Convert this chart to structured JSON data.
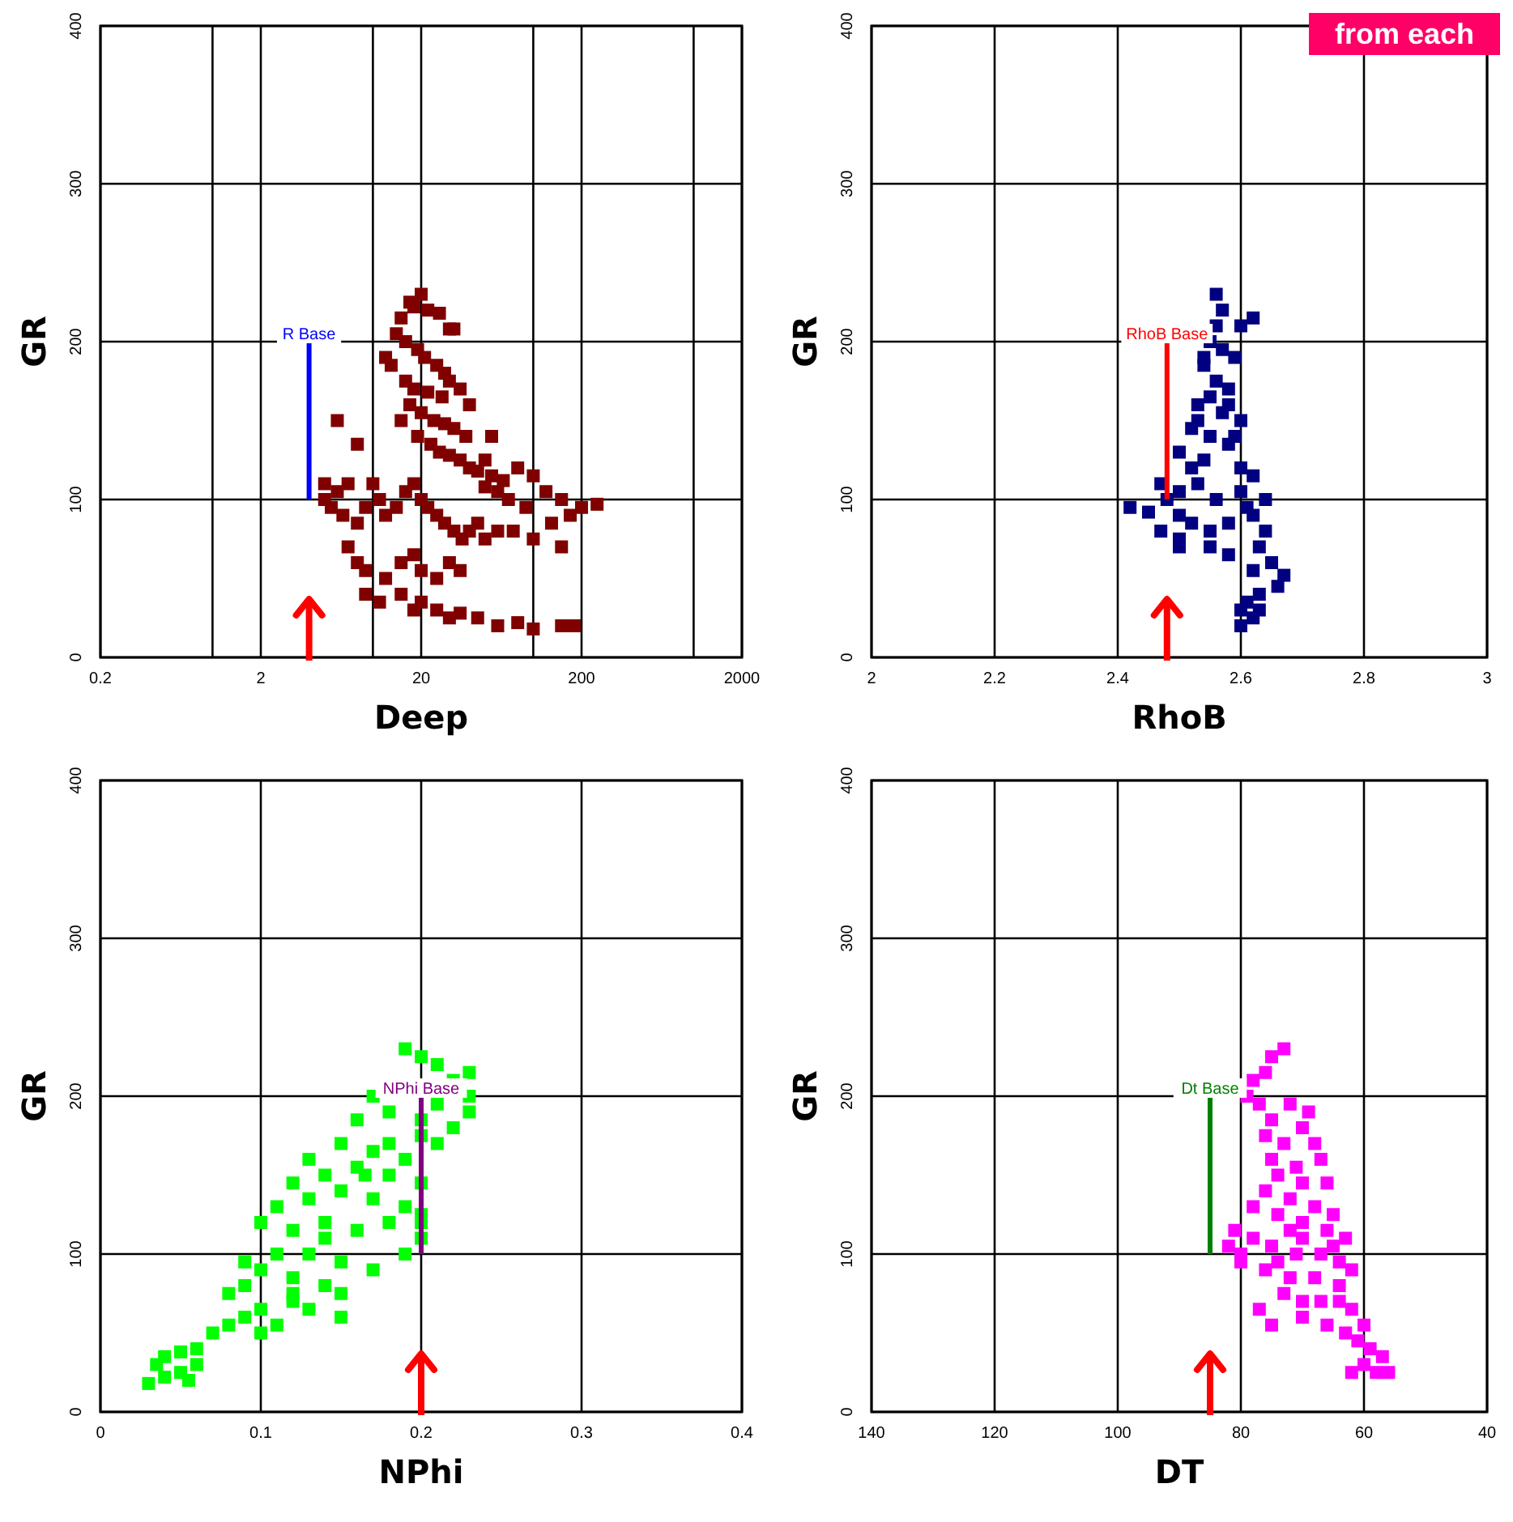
{
  "chart_data": [
    {
      "type": "scatter",
      "xlabel": "Deep",
      "ylabel": "GR",
      "log": "x",
      "xlim": [
        0.2,
        2000
      ],
      "xticks": [
        0.2,
        {
          "value": 1,
          "label": null
        },
        2,
        {
          "value": 10,
          "label": null
        },
        20,
        {
          "value": 100,
          "label": null
        },
        200,
        {
          "value": 1000,
          "label": null
        },
        2000
      ],
      "ylim": [
        0,
        400
      ],
      "yticks": [
        0,
        100,
        200,
        300,
        400
      ],
      "grid": true,
      "marker": "square",
      "series": [
        {
          "color": "#800000",
          "x": [
            15,
            17,
            20,
            18,
            22,
            26,
            30,
            32,
            14,
            16,
            12,
            13,
            19,
            21,
            25,
            28,
            30,
            35,
            16,
            18,
            22,
            27,
            17,
            20,
            24,
            28,
            32,
            38,
            15,
            19,
            23,
            26,
            30,
            35,
            40,
            45,
            55,
            65,
            80,
            100,
            120,
            150,
            200,
            250,
            170,
            130,
            90,
            70,
            60,
            50,
            8,
            7,
            6,
            5,
            5.5,
            6.5,
            8,
            9,
            10,
            11,
            12,
            14,
            16,
            18,
            20,
            22,
            25,
            28,
            32,
            36,
            40,
            45,
            50,
            60,
            75,
            100,
            150,
            7,
            8,
            9,
            12,
            15,
            18,
            20,
            25,
            30,
            35,
            9,
            11,
            15,
            18,
            20,
            25,
            30,
            35,
            45,
            60,
            80,
            100,
            150,
            180,
            6,
            40,
            50,
            55,
            5
          ],
          "values": [
            215,
            225,
            230,
            222,
            220,
            218,
            208,
            208,
            205,
            200,
            190,
            185,
            195,
            190,
            185,
            180,
            175,
            170,
            175,
            170,
            168,
            165,
            160,
            155,
            150,
            148,
            145,
            140,
            150,
            140,
            135,
            130,
            128,
            125,
            120,
            118,
            115,
            112,
            120,
            115,
            105,
            100,
            95,
            97,
            90,
            85,
            95,
            100,
            105,
            108,
            135,
            110,
            105,
            100,
            95,
            90,
            85,
            95,
            110,
            100,
            90,
            95,
            105,
            110,
            100,
            95,
            90,
            85,
            80,
            75,
            80,
            85,
            75,
            80,
            80,
            75,
            70,
            70,
            60,
            55,
            50,
            60,
            65,
            55,
            50,
            60,
            55,
            40,
            35,
            40,
            30,
            35,
            30,
            25,
            28,
            25,
            20,
            22,
            18,
            20,
            20,
            150,
            160,
            125,
            140,
            110
          ]
        },
        {
          "type": "line",
          "marker": "none",
          "color": "#0000ff",
          "x": [
            4,
            4
          ],
          "values": [
            100,
            200
          ]
        }
      ],
      "annotations": [
        {
          "text": "R Base",
          "x": 4,
          "y": 200
        }
      ]
    },
    {
      "type": "scatter",
      "xlabel": "RhoB",
      "ylabel": "GR",
      "xlim": [
        2,
        3
      ],
      "xticks": [
        2,
        2.2,
        2.4,
        2.6,
        2.8,
        3
      ],
      "ylim": [
        0,
        400
      ],
      "yticks": [
        0,
        100,
        200,
        300,
        400
      ],
      "grid": true,
      "marker": "square",
      "series": [
        {
          "color": "#000080",
          "x": [
            2.56,
            2.57,
            2.62,
            2.6,
            2.55,
            2.57,
            2.59,
            2.54,
            2.56,
            2.58,
            2.55,
            2.53,
            2.57,
            2.6,
            2.52,
            2.55,
            2.58,
            2.5,
            2.54,
            2.6,
            2.62,
            2.47,
            2.5,
            2.53,
            2.56,
            2.6,
            2.64,
            2.42,
            2.45,
            2.48,
            2.5,
            2.52,
            2.55,
            2.58,
            2.62,
            2.64,
            2.5,
            2.55,
            2.58,
            2.63,
            2.65,
            2.62,
            2.67,
            2.66,
            2.63,
            2.61,
            2.62,
            2.6,
            2.63,
            2.6,
            2.52,
            2.53,
            2.56,
            2.54,
            2.58,
            2.59,
            2.61,
            2.47,
            2.5
          ],
          "values": [
            230,
            220,
            215,
            210,
            200,
            195,
            190,
            185,
            175,
            170,
            165,
            160,
            155,
            150,
            145,
            140,
            135,
            130,
            125,
            120,
            115,
            110,
            105,
            110,
            100,
            105,
            100,
            95,
            92,
            100,
            90,
            85,
            80,
            85,
            90,
            80,
            75,
            70,
            65,
            70,
            60,
            55,
            52,
            45,
            40,
            35,
            25,
            20,
            30,
            30,
            120,
            150,
            210,
            190,
            160,
            140,
            95,
            80,
            70
          ]
        },
        {
          "type": "line",
          "marker": "none",
          "color": "#ff0000",
          "x": [
            2.48,
            2.48
          ],
          "values": [
            100,
            200
          ]
        }
      ],
      "annotations": [
        {
          "text": "RhoB Base",
          "x": 2.48,
          "y": 200
        },
        "from each"
      ]
    },
    {
      "type": "scatter",
      "xlabel": "NPhi",
      "ylabel": "GR",
      "xlim": [
        0,
        0.4
      ],
      "xticks": [
        0,
        0.1,
        0.2,
        0.3,
        0.4
      ],
      "ylim": [
        0,
        400
      ],
      "yticks": [
        0,
        100,
        200,
        300,
        400
      ],
      "grid": true,
      "marker": "square",
      "series": [
        {
          "color": "#00ff00",
          "x": [
            0.03,
            0.04,
            0.05,
            0.06,
            0.04,
            0.05,
            0.06,
            0.035,
            0.055,
            0.07,
            0.08,
            0.1,
            0.09,
            0.11,
            0.1,
            0.12,
            0.13,
            0.09,
            0.1,
            0.12,
            0.14,
            0.15,
            0.11,
            0.13,
            0.15,
            0.17,
            0.19,
            0.2,
            0.12,
            0.14,
            0.16,
            0.18,
            0.2,
            0.11,
            0.13,
            0.15,
            0.17,
            0.19,
            0.14,
            0.16,
            0.18,
            0.2,
            0.13,
            0.15,
            0.17,
            0.19,
            0.2,
            0.16,
            0.18,
            0.2,
            0.22,
            0.21,
            0.23,
            0.23,
            0.22,
            0.19,
            0.2,
            0.21,
            0.23,
            0.17,
            0.165,
            0.1,
            0.15,
            0.2,
            0.12,
            0.08,
            0.09,
            0.18,
            0.21,
            0.12,
            0.14
          ],
          "values": [
            18,
            22,
            25,
            30,
            35,
            38,
            40,
            30,
            20,
            50,
            55,
            50,
            60,
            55,
            65,
            70,
            65,
            80,
            90,
            85,
            80,
            75,
            100,
            100,
            95,
            90,
            100,
            110,
            115,
            120,
            115,
            120,
            125,
            130,
            135,
            140,
            135,
            130,
            150,
            155,
            150,
            145,
            160,
            170,
            165,
            160,
            175,
            185,
            190,
            185,
            180,
            195,
            190,
            200,
            210,
            230,
            225,
            220,
            215,
            200,
            150,
            120,
            60,
            120,
            75,
            75,
            95,
            170,
            170,
            145,
            110
          ]
        },
        {
          "type": "line",
          "marker": "none",
          "color": "#800080",
          "x": [
            0.2,
            0.2
          ],
          "values": [
            100,
            200
          ]
        }
      ],
      "annotations": [
        {
          "text": "NPhi Base",
          "x": 0.2,
          "y": 200
        }
      ]
    },
    {
      "type": "scatter",
      "xlabel": "DT",
      "ylabel": "GR",
      "xlim": [
        140,
        40
      ],
      "xticks": [
        140,
        120,
        100,
        80,
        60,
        40
      ],
      "ylim": [
        0,
        400
      ],
      "yticks": [
        0,
        100,
        200,
        300,
        400
      ],
      "grid": true,
      "marker": "square",
      "series": [
        {
          "color": "#ff00ff",
          "x": [
            73,
            75,
            76,
            78,
            79,
            77,
            72,
            75,
            70,
            76,
            73,
            68,
            75,
            71,
            67,
            74,
            70,
            66,
            76,
            72,
            68,
            65,
            74,
            70,
            66,
            63,
            81,
            82,
            80,
            78,
            75,
            71,
            67,
            64,
            80,
            76,
            72,
            68,
            64,
            62,
            73,
            70,
            67,
            64,
            62,
            70,
            66,
            63,
            61,
            59,
            57,
            60,
            58,
            56,
            62,
            75,
            77,
            60,
            78,
            69,
            70,
            72,
            65,
            74
          ],
          "values": [
            230,
            225,
            215,
            210,
            200,
            195,
            195,
            185,
            180,
            175,
            170,
            170,
            160,
            155,
            160,
            150,
            145,
            145,
            140,
            135,
            130,
            125,
            125,
            120,
            115,
            110,
            115,
            105,
            100,
            110,
            105,
            100,
            100,
            95,
            95,
            90,
            85,
            85,
            80,
            90,
            75,
            70,
            70,
            70,
            65,
            60,
            55,
            50,
            45,
            40,
            35,
            30,
            25,
            25,
            25,
            55,
            65,
            55,
            130,
            190,
            110,
            115,
            105,
            95
          ]
        },
        {
          "type": "line",
          "marker": "none",
          "color": "#008000",
          "x": [
            85,
            85
          ],
          "values": [
            100,
            200
          ]
        }
      ],
      "annotations": [
        {
          "text": "Dt Base",
          "x": 85,
          "y": 200
        }
      ]
    }
  ]
}
